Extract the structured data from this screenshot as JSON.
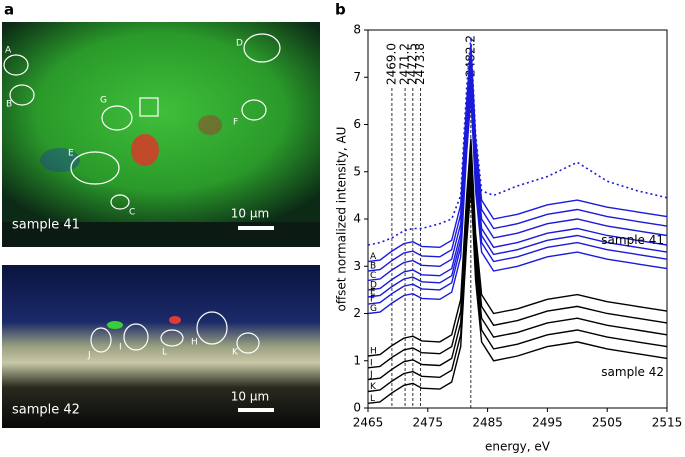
{
  "panel_labels": [
    "a",
    "b"
  ],
  "images": [
    {
      "caption": "sample 41",
      "scale_bar": "10 µm",
      "regions": [
        "A",
        "B",
        "C",
        "D",
        "E",
        "F",
        "G"
      ]
    },
    {
      "caption": "sample 42",
      "scale_bar": "10 µm",
      "regions": [
        "J",
        "I",
        "L",
        "H",
        "K"
      ]
    }
  ],
  "chart_data": {
    "type": "line",
    "x_label": "energy, eV",
    "y_label": "offset normalized intensity, AU",
    "x": [
      2465,
      2467,
      2469,
      2471,
      2472.5,
      2474,
      2477,
      2479,
      2480.5,
      2481.5,
      2482.2,
      2483,
      2484,
      2486,
      2490,
      2495,
      2500,
      2505,
      2510,
      2515
    ],
    "series": [
      {
        "color": "#1a1adb",
        "dotted": true,
        "values": [
          3.45,
          3.5,
          3.6,
          3.75,
          3.8,
          3.8,
          3.9,
          4.0,
          4.5,
          6.8,
          7.85,
          5.8,
          4.6,
          4.5,
          4.7,
          4.9,
          5.2,
          4.8,
          4.6,
          4.45
        ]
      },
      {
        "name": "A",
        "color": "#1a1adb",
        "values": [
          3.1,
          3.13,
          3.32,
          3.48,
          3.52,
          3.42,
          3.4,
          3.55,
          4.3,
          6.5,
          7.7,
          5.7,
          4.4,
          4.0,
          4.1,
          4.3,
          4.4,
          4.25,
          4.15,
          4.05
        ]
      },
      {
        "name": "B",
        "color": "#1a1adb",
        "values": [
          2.9,
          2.93,
          3.12,
          3.28,
          3.32,
          3.22,
          3.2,
          3.35,
          4.1,
          6.3,
          7.5,
          5.5,
          4.2,
          3.8,
          3.9,
          4.1,
          4.2,
          4.05,
          3.95,
          3.85
        ]
      },
      {
        "name": "C",
        "color": "#1a1adb",
        "values": [
          2.7,
          2.73,
          2.92,
          3.08,
          3.12,
          3.02,
          3.0,
          3.15,
          3.9,
          6.1,
          7.3,
          5.3,
          4.0,
          3.6,
          3.7,
          3.9,
          4.0,
          3.85,
          3.75,
          3.65
        ]
      },
      {
        "name": "D",
        "color": "#1a1adb",
        "values": [
          2.5,
          2.53,
          2.72,
          2.88,
          2.92,
          2.82,
          2.8,
          2.95,
          3.7,
          5.9,
          7.1,
          5.1,
          3.8,
          3.4,
          3.5,
          3.7,
          3.8,
          3.65,
          3.55,
          3.45
        ]
      },
      {
        "name": "E",
        "color": "#1a1adb",
        "values": [
          2.35,
          2.38,
          2.57,
          2.73,
          2.77,
          2.67,
          2.65,
          2.8,
          3.55,
          5.75,
          6.95,
          4.95,
          3.65,
          3.25,
          3.35,
          3.55,
          3.65,
          3.5,
          3.4,
          3.3
        ]
      },
      {
        "name": "F",
        "color": "#1a1adb",
        "values": [
          2.2,
          2.23,
          2.42,
          2.58,
          2.62,
          2.52,
          2.5,
          2.65,
          3.4,
          5.6,
          6.8,
          4.8,
          3.5,
          3.1,
          3.2,
          3.4,
          3.5,
          3.35,
          3.25,
          3.15
        ]
      },
      {
        "name": "G",
        "color": "#1a1adb",
        "values": [
          2.0,
          2.03,
          2.22,
          2.38,
          2.42,
          2.32,
          2.3,
          2.45,
          3.2,
          5.4,
          6.6,
          4.6,
          3.3,
          2.9,
          3.0,
          3.2,
          3.3,
          3.15,
          3.05,
          2.95
        ]
      },
      {
        "name": "H",
        "color": "#000000",
        "values": [
          1.1,
          1.13,
          1.32,
          1.48,
          1.52,
          1.42,
          1.4,
          1.55,
          2.3,
          4.5,
          5.7,
          3.7,
          2.4,
          2.0,
          2.1,
          2.3,
          2.4,
          2.25,
          2.15,
          2.05
        ]
      },
      {
        "name": "I",
        "color": "#000000",
        "values": [
          0.85,
          0.88,
          1.07,
          1.23,
          1.27,
          1.17,
          1.15,
          1.3,
          2.05,
          4.25,
          5.45,
          3.45,
          2.15,
          1.75,
          1.85,
          2.05,
          2.15,
          2.0,
          1.9,
          1.8
        ]
      },
      {
        "name": "J",
        "color": "#000000",
        "values": [
          0.6,
          0.63,
          0.82,
          0.98,
          1.02,
          0.92,
          0.9,
          1.05,
          1.8,
          4.0,
          5.2,
          3.2,
          1.9,
          1.5,
          1.6,
          1.8,
          1.9,
          1.75,
          1.65,
          1.55
        ]
      },
      {
        "name": "K",
        "color": "#000000",
        "values": [
          0.35,
          0.38,
          0.57,
          0.73,
          0.77,
          0.67,
          0.65,
          0.8,
          1.55,
          3.75,
          4.95,
          2.95,
          1.65,
          1.25,
          1.35,
          1.55,
          1.65,
          1.5,
          1.4,
          1.3
        ]
      },
      {
        "name": "L",
        "color": "#000000",
        "values": [
          0.1,
          0.13,
          0.32,
          0.48,
          0.52,
          0.42,
          0.4,
          0.55,
          1.3,
          3.5,
          4.7,
          2.7,
          1.4,
          1.0,
          1.1,
          1.3,
          1.4,
          1.25,
          1.15,
          1.05
        ]
      }
    ],
    "vlines": [
      {
        "value": 2469.0,
        "label": "2469.0"
      },
      2471.2,
      2472.5,
      2473.8,
      2482.2
    ],
    "annotations": [
      "sample 41",
      "sample 42"
    ],
    "xlim": [
      2465,
      2515
    ],
    "xticks": [
      2465,
      2475,
      2485,
      2495,
      2505,
      2515
    ],
    "ylim": [
      0,
      8
    ],
    "yticks": [
      0,
      1,
      2,
      3,
      4,
      5,
      6,
      7,
      8
    ]
  }
}
